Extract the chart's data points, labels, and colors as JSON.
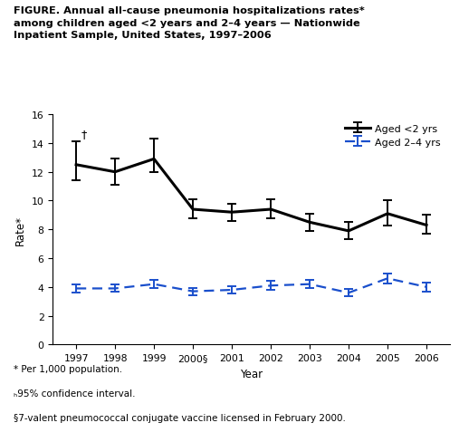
{
  "years": [
    1997,
    1998,
    1999,
    2000,
    2001,
    2002,
    2003,
    2004,
    2005,
    2006
  ],
  "line1_values": [
    12.5,
    12.0,
    12.9,
    9.4,
    9.2,
    9.4,
    8.5,
    7.9,
    9.1,
    8.3
  ],
  "line1_err_low": [
    1.1,
    0.9,
    0.9,
    0.6,
    0.6,
    0.6,
    0.6,
    0.6,
    0.8,
    0.6
  ],
  "line1_err_high": [
    1.6,
    0.9,
    1.4,
    0.7,
    0.6,
    0.7,
    0.6,
    0.6,
    0.9,
    0.7
  ],
  "line2_values": [
    3.9,
    3.9,
    4.2,
    3.7,
    3.8,
    4.1,
    4.2,
    3.6,
    4.6,
    4.0
  ],
  "line2_err_low": [
    0.3,
    0.25,
    0.3,
    0.25,
    0.25,
    0.3,
    0.3,
    0.25,
    0.35,
    0.3
  ],
  "line2_err_high": [
    0.3,
    0.25,
    0.3,
    0.25,
    0.25,
    0.3,
    0.3,
    0.25,
    0.35,
    0.3
  ],
  "line1_color": "#000000",
  "line2_color": "#1a4fcc",
  "line1_label": "Aged <2 yrs",
  "line2_label": "Aged 2–4 yrs",
  "xlabel": "Year",
  "ylabel": "Rate*",
  "ylim": [
    0,
    16
  ],
  "yticks": [
    0,
    2,
    4,
    6,
    8,
    10,
    12,
    14,
    16
  ],
  "title_line1": "FIGURE. Annual all-cause pneumonia hospitalizations rates*",
  "title_line2": "among children aged <2 years and 2–4 years — Nationwide",
  "title_line3": "Inpatient Sample, United States, 1997–2006",
  "footnote1": "* Per 1,000 population.",
  "footnote2": "ₕ95% confidence interval.",
  "footnote3": "§7-valent pneumococcal conjugate vaccine licensed in February 2000.",
  "x_tick_labels": [
    "1997",
    "1998",
    "1999",
    "2000§",
    "2001",
    "2002",
    "2003",
    "2004",
    "2005",
    "2006"
  ],
  "dagger_label": "†",
  "background_color": "#ffffff"
}
